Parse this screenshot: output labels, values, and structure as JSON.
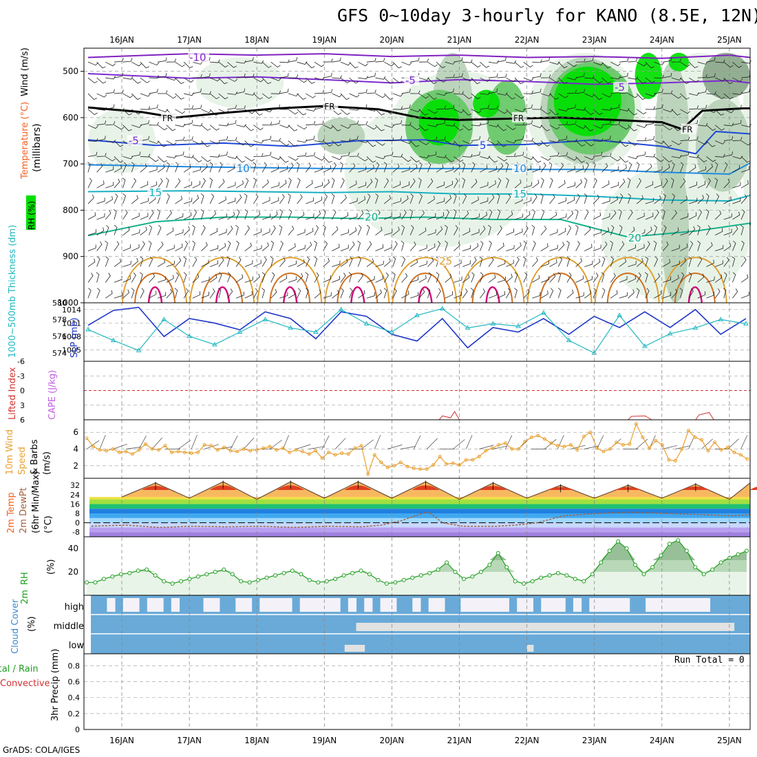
{
  "title": "GFS 0~10day 3-hourly for KANO (8.5E, 12N)",
  "footer": "GrADS: COLA/IGES",
  "run_total": "Run Total = 0",
  "colors": {
    "rh_light": "#e6f2e6",
    "rh_mid": "#b7d1b7",
    "rh_dark": "#8aa88a",
    "rh_bright": "#00e000",
    "rh_green": "#66c866",
    "iso_minus10": "#8020c0",
    "iso_minus5": "#7c2ad0",
    "iso_freezing": "#000000",
    "iso_5": "#1f48d8",
    "iso_10": "#1e8ae0",
    "iso_15": "#16b0c0",
    "iso_20": "#14b08a",
    "iso_25": "#e0a030",
    "iso_30": "#d07020",
    "iso_35": "#d0107a",
    "slp": "#1c34c8",
    "thickness": "#20b8c0",
    "lifted": "#d03030",
    "cape": "#c060e0",
    "wind_speed": "#e8a030",
    "temp": "#f06020",
    "dewpoint": "#a06040",
    "rh2m": "#1e9e1e",
    "cloud_fill": "#6aaad8",
    "cloud_clear": "#f4f2f8",
    "cloud_mid_clear": "#e2e2e2"
  },
  "chart_data": [
    {
      "type": "heatmap",
      "name": "cross-section",
      "xlabel": "",
      "ylabel": "(millibars)",
      "ylabel_parts": [
        "Wind (m/s)",
        "Temperature (°C)",
        "RH (%)"
      ],
      "date_labels": [
        "16JAN",
        "17JAN",
        "18JAN",
        "19JAN",
        "20JAN",
        "21JAN",
        "22JAN",
        "23JAN",
        "24JAN",
        "25JAN"
      ],
      "xlim_days": [
        0,
        10
      ],
      "ylim": [
        1000,
        450
      ],
      "y_ticks": [
        500,
        600,
        700,
        800,
        900,
        1000
      ],
      "isotherm_labels": [
        {
          "label": "-10",
          "day": 1.0,
          "p": 470
        },
        {
          "label": "-5",
          "day": 4.2,
          "p": 520
        },
        {
          "label": "-5",
          "day": 7.3,
          "p": 535
        },
        {
          "label": "FR",
          "day": 0.6,
          "p": 600
        },
        {
          "label": "FR",
          "day": 3.0,
          "p": 575
        },
        {
          "label": "FR",
          "day": 5.8,
          "p": 600
        },
        {
          "label": "FR",
          "day": 8.3,
          "p": 625
        },
        {
          "label": "-5",
          "day": 0.1,
          "p": 650
        },
        {
          "label": "5",
          "day": 5.3,
          "p": 660
        },
        {
          "label": "10",
          "day": 1.7,
          "p": 710
        },
        {
          "label": "10",
          "day": 5.8,
          "p": 710
        },
        {
          "label": "15",
          "day": 0.4,
          "p": 762
        },
        {
          "label": "15",
          "day": 5.8,
          "p": 765
        },
        {
          "label": "20",
          "day": 3.6,
          "p": 815
        },
        {
          "label": "20",
          "day": 7.5,
          "p": 860
        },
        {
          "label": "25",
          "day": 4.7,
          "p": 910
        }
      ]
    },
    {
      "type": "line",
      "name": "slp-thickness",
      "ylabel_left": "1000~500mb Thickness (dm)",
      "ylabel_right": "SLP (mb)",
      "left_ticks": [
        574,
        576,
        578,
        580
      ],
      "right_ticks": [
        1005,
        1008,
        1011,
        1014
      ],
      "ylim_slp": [
        1002.5,
        1015.5
      ],
      "ylim_thickness": [
        573,
        580
      ],
      "x_days": [
        0,
        0.375,
        0.75,
        1.125,
        1.5,
        1.875,
        2.25,
        2.625,
        3,
        3.375,
        3.75,
        4.125,
        4.5,
        4.875,
        5.25,
        5.625,
        6,
        6.375,
        6.75,
        7.125,
        7.5,
        7.875,
        8.25,
        8.625,
        9,
        9.375,
        9.75
      ],
      "series": [
        {
          "name": "SLP",
          "values": [
            1010.5,
            1013.8,
            1014.5,
            1008,
            1012,
            1011,
            1009.5,
            1013.5,
            1012,
            1007.5,
            1013.5,
            1012.5,
            1008.5,
            1007,
            1012,
            1005.5,
            1010,
            1009,
            1012,
            1008.5,
            1012.5,
            1010,
            1013.5,
            1010,
            1014,
            1008.5,
            1012
          ]
        },
        {
          "name": "Thickness",
          "values": [
            576.8,
            575.5,
            574.3,
            578,
            576,
            575,
            576.5,
            578,
            577,
            576.5,
            579.2,
            577.5,
            576.5,
            578.5,
            579.3,
            577,
            577.5,
            577.2,
            578.8,
            575.5,
            574,
            578.5,
            574.8,
            576.3,
            577,
            578,
            577.5
          ]
        }
      ]
    },
    {
      "type": "line",
      "name": "cape-lifted-index",
      "ylabel_left": "Lifted Index",
      "ylabel_right": "CAPE (J/kg)",
      "left_ticks": [
        -6,
        -3,
        0,
        3,
        6
      ],
      "ylim": [
        -6,
        6
      ],
      "series": [
        {
          "name": "Lifted Index",
          "points": [
            [
              4.7,
              6
            ],
            [
              4.75,
              5.2
            ],
            [
              4.87,
              5.6
            ],
            [
              4.93,
              4.3
            ],
            [
              5.0,
              6
            ],
            [
              7.5,
              6
            ],
            [
              7.55,
              5.3
            ],
            [
              7.75,
              5.2
            ],
            [
              7.85,
              6
            ],
            [
              8.5,
              6
            ],
            [
              8.55,
              5.0
            ],
            [
              8.7,
              4.5
            ],
            [
              8.77,
              6
            ]
          ]
        }
      ]
    },
    {
      "type": "line",
      "name": "wind-10m",
      "ylabel": "10m Wind Speed & Barbs (m/s)",
      "ylabel_parts": [
        "10m Wind",
        "Speed",
        "& Barbs",
        "(m/s)"
      ],
      "y_ticks": [
        2,
        4,
        6
      ],
      "ylim": [
        0.5,
        7.5
      ],
      "values": [
        5.3,
        4.3,
        3.9,
        3.8,
        4.0,
        3.6,
        3.7,
        3.4,
        3.9,
        4.6,
        4.0,
        3.9,
        4.4,
        3.6,
        3.7,
        3.6,
        3.5,
        3.6,
        4.5,
        4.4,
        3.9,
        4.2,
        3.8,
        3.7,
        4.0,
        3.8,
        3.9,
        4.1,
        4.3,
        3.9,
        4.1,
        3.6,
        3.9,
        3.7,
        3.4,
        3.8,
        2.9,
        3.6,
        3.3,
        3.5,
        3.4,
        4.1,
        4.4,
        1.0,
        3.3,
        2.4,
        1.8,
        2.0,
        2.4,
        1.9,
        1.7,
        1.6,
        1.6,
        2.1,
        3.1,
        2.2,
        2.3,
        2.1,
        2.7,
        2.7,
        3.1,
        3.8,
        4.1,
        4.5,
        4.7,
        4.0,
        4.0,
        4.9,
        5.4,
        5.6,
        5.2,
        4.7,
        4.4,
        4.3,
        4.5,
        3.9,
        5.5,
        6.0,
        4.1,
        3.7,
        4.0,
        4.8,
        4.5,
        4.6,
        7.0,
        5.4,
        4.1,
        5.0,
        4.5,
        2.7,
        2.6,
        4.0,
        6.2,
        5.4,
        5.1,
        3.8,
        4.8,
        3.9,
        4.2,
        3.6,
        3.3,
        2.8
      ]
    },
    {
      "type": "area",
      "name": "temp-2m",
      "ylabel_parts": [
        "2m Temp",
        "2m DewPt",
        "(6hr Min/Max)",
        "(°C)"
      ],
      "y_ticks": [
        32,
        24,
        16,
        8,
        0,
        -8
      ],
      "ylim": [
        -12,
        38
      ],
      "temp_max_days": [
        0.5,
        1.5,
        2.5,
        3.5,
        4.5,
        5.5,
        6.5,
        7.5,
        8.5,
        9.5
      ],
      "temp_max": [
        34,
        35,
        35,
        35,
        35,
        34,
        32,
        32,
        33,
        34
      ],
      "temp_min_days": [
        0,
        1,
        2,
        3,
        4,
        5,
        6,
        7,
        8,
        9,
        10
      ],
      "temp_min": [
        22,
        21,
        20,
        21,
        21,
        20,
        21,
        21,
        21,
        20,
        21
      ],
      "dewpoint_days": [
        0,
        0.5,
        1,
        1.5,
        2,
        2.5,
        3,
        3.5,
        4,
        4.3,
        4.6,
        4.9,
        5,
        5.2,
        5.5,
        5.8,
        6,
        6.3,
        6.6,
        7,
        7.5,
        8,
        8.5,
        9,
        9.5,
        10
      ],
      "dewpoint": [
        -3,
        -2,
        -4,
        -3,
        -3.5,
        -3,
        -4,
        -3,
        -3.5,
        -2,
        2,
        8,
        9,
        0,
        -3,
        -3,
        -3,
        -2,
        0,
        6,
        8,
        9,
        8,
        7,
        6,
        7
      ]
    },
    {
      "type": "area",
      "name": "rh-2m",
      "ylabel": "2m RH (%)",
      "y_ticks": [
        20,
        40
      ],
      "ylim": [
        0,
        50
      ],
      "values": [
        11,
        11,
        14,
        16,
        18,
        19,
        21,
        22,
        17,
        12,
        10,
        12,
        14,
        16,
        18,
        20,
        22,
        18,
        12,
        11,
        13,
        15,
        17,
        19,
        21,
        18,
        13,
        11,
        12,
        14,
        17,
        19,
        21,
        18,
        13,
        10,
        11,
        13,
        15,
        17,
        19,
        22,
        28,
        20,
        14,
        16,
        20,
        26,
        36,
        24,
        12,
        10,
        12,
        15,
        17,
        19,
        17,
        14,
        12,
        18,
        28,
        38,
        46,
        40,
        26,
        18,
        24,
        34,
        44,
        47,
        38,
        24,
        18,
        22,
        28,
        32,
        35,
        38
      ]
    },
    {
      "type": "heatmap",
      "name": "cloud-cover",
      "ylabel": "Cloud Cover (%)",
      "rows": [
        "high",
        "middle",
        "low"
      ],
      "high_clear_fraction": [
        0,
        0,
        1,
        0,
        1,
        1,
        0,
        1,
        1,
        0,
        1,
        0,
        0,
        0,
        1,
        1,
        0,
        0,
        1,
        1,
        0,
        1,
        1,
        1,
        1,
        0,
        1,
        1,
        1,
        1,
        1,
        0,
        1,
        0,
        1,
        0,
        1,
        1,
        0,
        0,
        1,
        0,
        1,
        1,
        0,
        0,
        1,
        1,
        1,
        1,
        1,
        1,
        0,
        1,
        1,
        0,
        1,
        1,
        1,
        0,
        1,
        0,
        1,
        1,
        1,
        1,
        1,
        0,
        0,
        1,
        1,
        1,
        1,
        1,
        1,
        1,
        1,
        0,
        0,
        0,
        0,
        0
      ],
      "middle_clear_fraction": [
        0,
        0,
        0,
        0,
        0,
        0,
        0,
        0,
        0,
        0,
        0,
        0,
        0,
        0,
        0,
        0,
        0,
        0,
        0,
        0,
        0,
        0,
        0,
        0,
        0,
        0,
        0,
        0,
        0,
        0,
        0,
        0,
        0,
        1,
        1,
        1,
        1,
        1,
        1,
        1,
        1,
        1,
        1,
        1,
        1,
        1,
        1,
        1,
        1,
        1,
        1,
        1,
        1,
        1,
        1,
        1,
        1,
        1,
        1,
        1,
        1,
        1,
        1,
        1,
        1,
        1,
        1,
        1,
        1,
        1,
        1,
        1,
        1,
        1,
        1,
        1,
        1,
        1,
        1,
        1,
        0,
        0
      ],
      "low_clear_marks": [
        [
          3.3,
          3.6
        ],
        [
          6.0,
          6.1
        ]
      ]
    },
    {
      "type": "bar",
      "name": "precip-3hr",
      "ylabel_parts": [
        "3hr Precip (mm)",
        "Total / Rain",
        "Convective"
      ],
      "y_ticks": [
        0,
        0.2,
        0.4,
        0.6,
        0.8
      ],
      "ylim": [
        0,
        0.95
      ],
      "values": []
    }
  ]
}
